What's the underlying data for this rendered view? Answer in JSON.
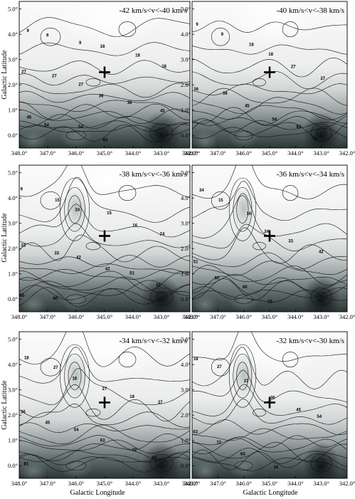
{
  "chart_data": {
    "type": "heatmap",
    "description_type": "contour map grid",
    "xlabel": "Galactic Longitude",
    "ylabel": "Galactic Latitude",
    "x_ticks": [
      "348.0°",
      "347.0°",
      "346.0°",
      "345.0°",
      "344.0°",
      "343.0°",
      "342.0°"
    ],
    "y_ticks": [
      "0.0°",
      "1.0°",
      "2.0°",
      "3.0°",
      "4.0°",
      "5.0°"
    ],
    "xlim": [
      348.0,
      342.0
    ],
    "ylim": [
      -0.5,
      5.3
    ],
    "marker": {
      "symbol": "+",
      "l": 345.0,
      "b": 2.5
    },
    "panels": [
      {
        "velocity_range": "-42 km/s<v<-40 km/s",
        "contour_labels": [
          "9",
          "9",
          "9",
          "18",
          "18",
          "18",
          "27",
          "27",
          "27",
          "36",
          "36",
          "45",
          "45",
          "54",
          "54",
          "63"
        ]
      },
      {
        "velocity_range": "-40 km/s<v<-38 km/s",
        "contour_labels": [
          "9",
          "9",
          "18",
          "18",
          "27",
          "27",
          "36",
          "36",
          "45",
          "54",
          "63",
          "72"
        ]
      },
      {
        "velocity_range": "-38 km/s<v<-36 km/s",
        "contour_labels": [
          "9",
          "15",
          "24",
          "15",
          "16",
          "24",
          "33",
          "33",
          "42",
          "42",
          "51",
          "51",
          "60",
          "60"
        ]
      },
      {
        "velocity_range": "-36 km/s<v<-34 km/s",
        "contour_labels": [
          "34",
          "15",
          "16",
          "24",
          "33",
          "42",
          "51",
          "60",
          "60",
          "15"
        ]
      },
      {
        "velocity_range": "-34 km/s<v<-32 km/s",
        "contour_labels": [
          "18",
          "27",
          "18",
          "27",
          "18",
          "27",
          "36",
          "45",
          "54",
          "63",
          "72",
          "63",
          "81"
        ]
      },
      {
        "velocity_range": "-32 km/s<v<-30 km/s",
        "contour_labels": [
          "18",
          "27",
          "27",
          "36",
          "45",
          "54",
          "63",
          "72",
          "63",
          "18"
        ]
      }
    ]
  }
}
